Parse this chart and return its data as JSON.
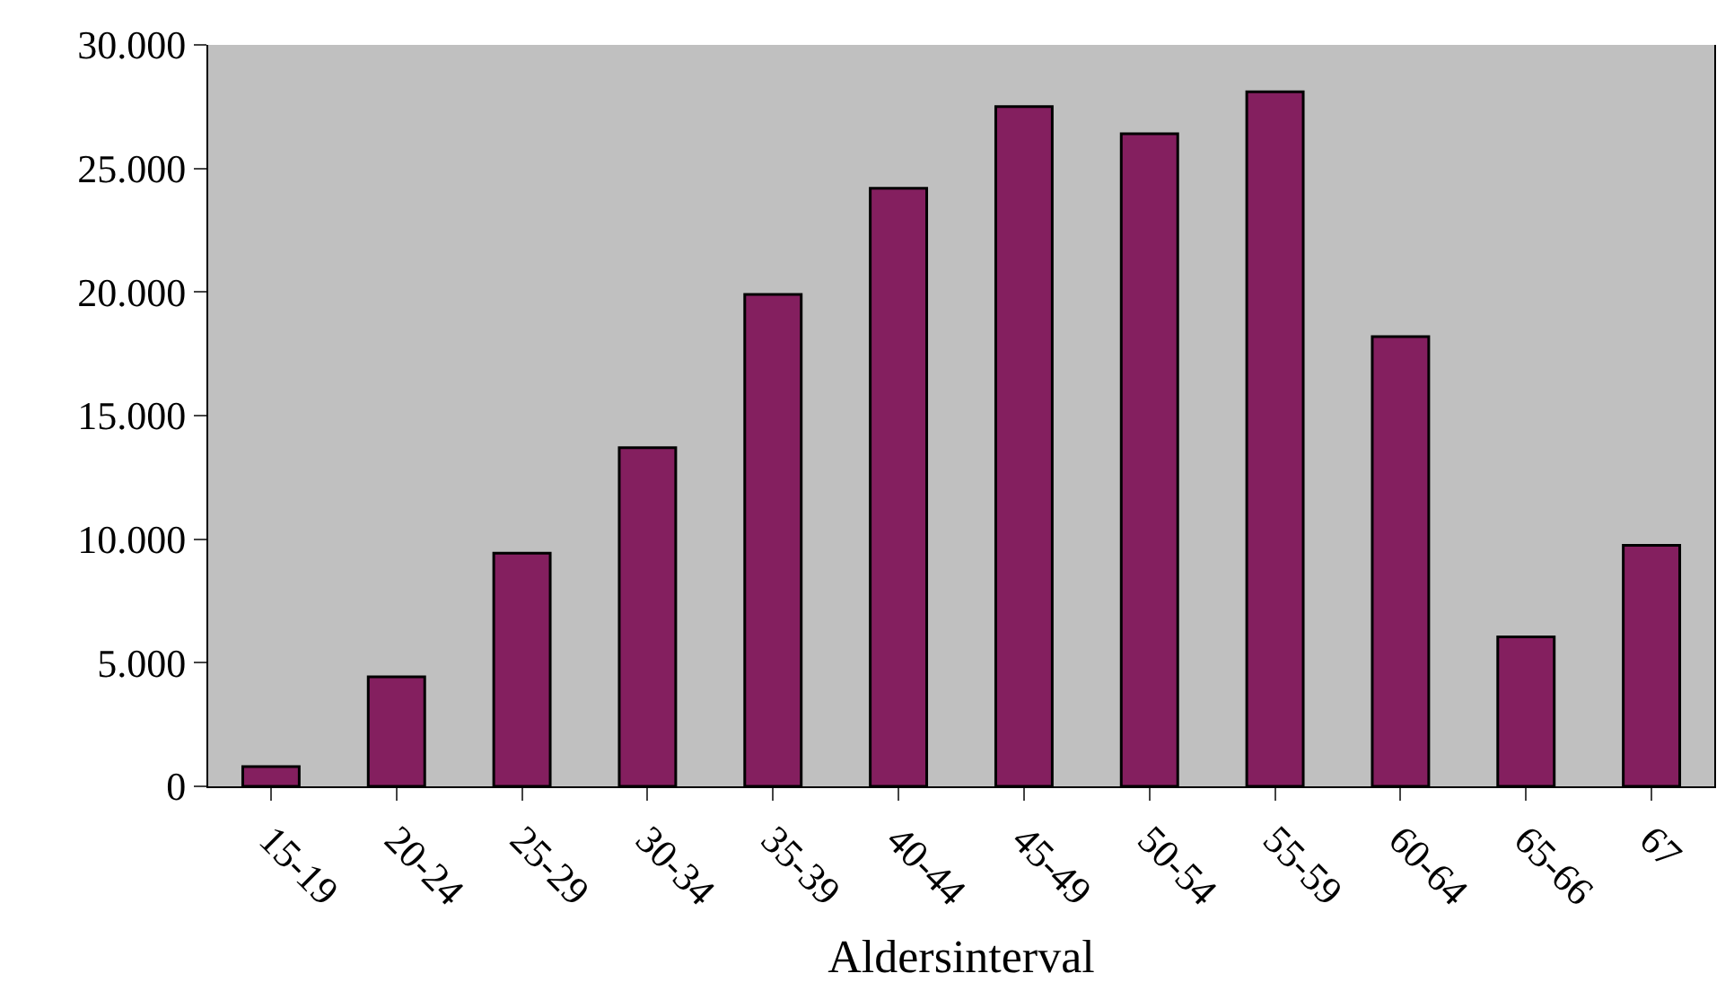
{
  "chart_data": {
    "type": "bar",
    "xlabel": "Aldersinterval",
    "categories": [
      "15-19",
      "20-24",
      "25-29",
      "30-34",
      "35-39",
      "40-44",
      "45-49",
      "50-54",
      "55-59",
      "60-64",
      "65-66",
      "67"
    ],
    "values": [
      800,
      4430,
      9430,
      13700,
      19900,
      24200,
      27500,
      26400,
      28100,
      18200,
      6050,
      9750
    ],
    "color": "#841f5f",
    "ylim": [
      0,
      30000
    ],
    "yticks": [
      {
        "value": 0,
        "label": "0"
      },
      {
        "value": 5000,
        "label": "5.000"
      },
      {
        "value": 10000,
        "label": "10.000"
      },
      {
        "value": 15000,
        "label": "15.000"
      },
      {
        "value": 20000,
        "label": "20.000"
      },
      {
        "value": 25000,
        "label": "25.000"
      },
      {
        "value": 30000,
        "label": "30.000"
      }
    ],
    "grid": false,
    "legend": false
  }
}
